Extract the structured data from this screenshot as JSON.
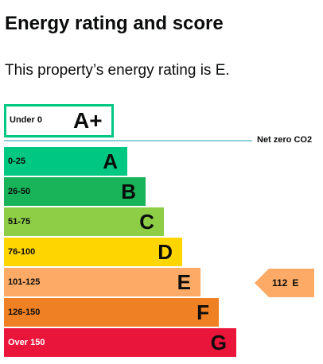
{
  "heading": {
    "title": "Energy rating and score",
    "summary": "This property’s energy rating is E."
  },
  "target": {
    "range": "Under 0",
    "letter": "A+",
    "border_color": "#00c781"
  },
  "net_zero": {
    "label": "Net zero CO2",
    "line_color": "#8ecfdc"
  },
  "bands": [
    {
      "range": "0-25",
      "letter": "A",
      "color": "#00c781"
    },
    {
      "range": "26-50",
      "letter": "B",
      "color": "#19b459"
    },
    {
      "range": "51-75",
      "letter": "C",
      "color": "#8dce46"
    },
    {
      "range": "76-100",
      "letter": "D",
      "color": "#ffd500"
    },
    {
      "range": "101-125",
      "letter": "E",
      "color": "#fcaa65"
    },
    {
      "range": "126-150",
      "letter": "F",
      "color": "#ef8023"
    },
    {
      "range": "Over 150",
      "letter": "G",
      "color": "#e9153b"
    }
  ],
  "current": {
    "score": "112",
    "letter": "E",
    "color": "#fcaa65"
  }
}
